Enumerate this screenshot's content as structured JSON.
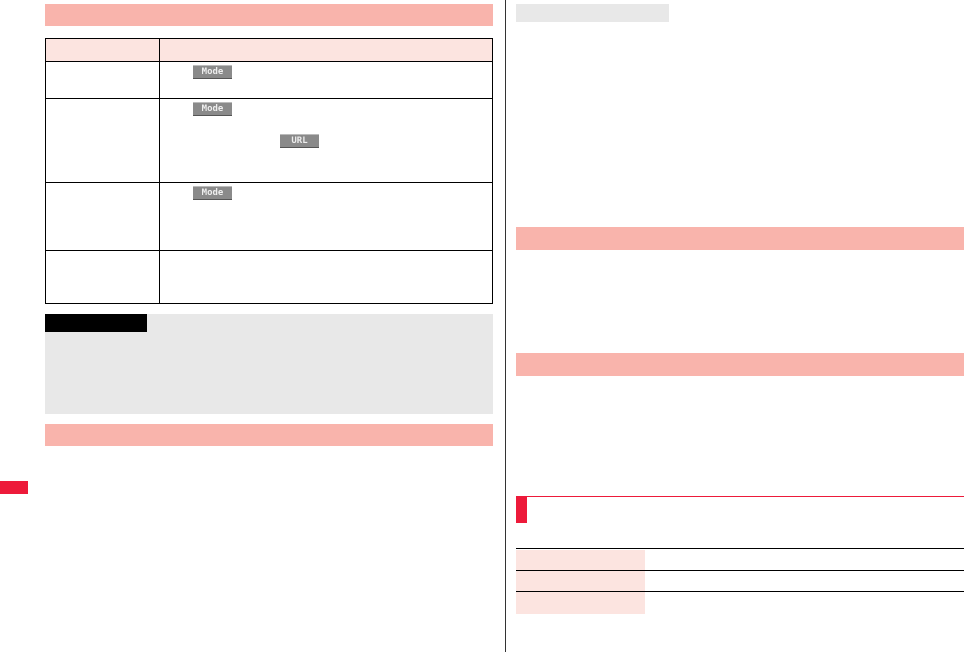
{
  "keys": {
    "mode": "Mode",
    "url": "URL"
  },
  "colors": {
    "section_bar": "#f9b4ac",
    "table_header": "#fce4e0",
    "note_box": "#e8e8e8",
    "accent_red": "#ed1a3a"
  }
}
